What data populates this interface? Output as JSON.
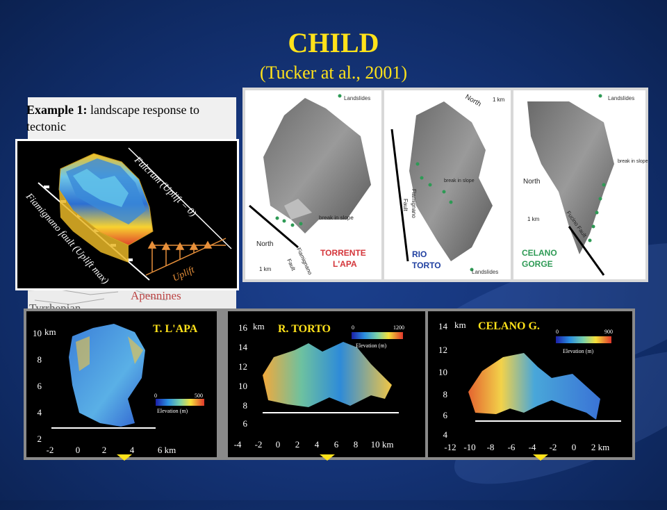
{
  "title": "CHILD",
  "subtitle": "(Tucker at al., 2001)",
  "example": {
    "label": "Example 1:",
    "text": " landscape response to tectonic"
  },
  "uplift_figure": {
    "fulcrum_label": "Fulcrum (Uplift = 0)",
    "fault_label": "Fiamignano fault (Uplift max)",
    "uplift_label": "Uplift"
  },
  "background_map": {
    "apennines": "Apennines",
    "tyrrhenian": "Tyrrhenian"
  },
  "landslide_maps": [
    {
      "name_line1": "TORRENTE",
      "name_line2": "L'APA",
      "legend": "Landslides",
      "north": "North",
      "scale": "1 km",
      "break_label": "break in slope",
      "fault_label_1": "Fiamignano",
      "fault_label_2": "Fault",
      "name_color": "#d4353a"
    },
    {
      "name_line1": "RIO",
      "name_line2": "TORTO",
      "legend": "Landslides",
      "north": "North",
      "scale": "1 km",
      "break_label": "break in slope",
      "fault_label_1": "Fiamignano",
      "fault_label_2": "Fault",
      "name_color": "#1f3fa0"
    },
    {
      "name_line1": "CELANO",
      "name_line2": "GORGE",
      "legend": "Landslides",
      "north": "North",
      "scale": "1 km",
      "break_label": "break in slope",
      "fault_label_1": "Fucino Fault",
      "fault_label_2": "",
      "name_color": "#2e9a55"
    }
  ],
  "elevation_maps": [
    {
      "title": "T. L'APA",
      "unit": "km",
      "yticks": [
        "10",
        "8",
        "6",
        "4",
        "2"
      ],
      "xticks": [
        "-2",
        "0",
        "2",
        "4",
        "6 km"
      ],
      "colorbar_min": "0",
      "colorbar_max": "500",
      "colorbar_label": "Elevation (m)"
    },
    {
      "title": "R. TORTO",
      "unit": "km",
      "yticks": [
        "16",
        "14",
        "12",
        "10",
        "8",
        "6"
      ],
      "xticks": [
        "-4",
        "-2",
        "0",
        "2",
        "4",
        "6",
        "8",
        "10 km"
      ],
      "colorbar_min": "0",
      "colorbar_max": "1200",
      "colorbar_label": "Elevation (m)"
    },
    {
      "title": "CELANO G.",
      "unit": "km",
      "yticks": [
        "14",
        "12",
        "10",
        "8",
        "6",
        "4"
      ],
      "xticks": [
        "-12",
        "-10",
        "-8",
        "-6",
        "-4",
        "-2",
        "0",
        "2 km"
      ],
      "colorbar_min": "0",
      "colorbar_max": "900",
      "colorbar_label": "Elevation (m)"
    }
  ],
  "colors": {
    "title": "#ffe21a",
    "background": "#16367c",
    "map_title": "#ffe21a"
  }
}
